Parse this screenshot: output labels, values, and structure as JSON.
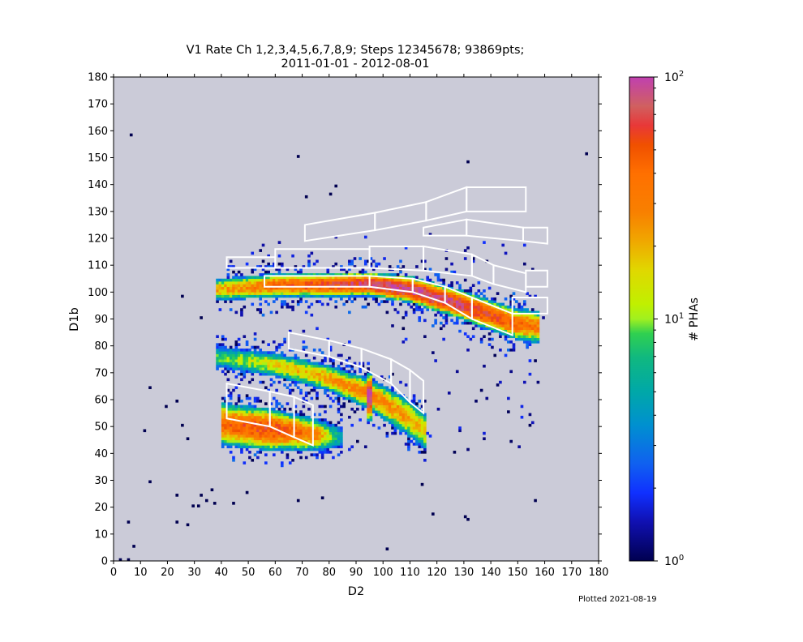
{
  "chart_data": {
    "type": "heatmap",
    "title_line1": "V1 Rate Ch 1,2,3,4,5,6,7,8,9; Steps 12345678; 93869pts;",
    "title_line2": "2011-01-01 - 2012-08-01",
    "xlabel": "D2",
    "ylabel": "D1b",
    "xlim": [
      0,
      180
    ],
    "ylim": [
      0,
      180
    ],
    "xticks": [
      0,
      10,
      20,
      30,
      40,
      50,
      60,
      70,
      80,
      90,
      100,
      110,
      120,
      130,
      140,
      150,
      160,
      170,
      180
    ],
    "yticks": [
      0,
      10,
      20,
      30,
      40,
      50,
      60,
      70,
      80,
      90,
      100,
      110,
      120,
      130,
      140,
      150,
      160,
      170,
      180
    ],
    "background_color": "#cbcbd8",
    "colorbar": {
      "label": "# PHAs",
      "scale": "log",
      "range": [
        1,
        100
      ],
      "tick_labels": [
        {
          "base": "10",
          "exp": "0",
          "value": 1
        },
        {
          "base": "10",
          "exp": "1",
          "value": 10
        },
        {
          "base": "10",
          "exp": "2",
          "value": 100
        }
      ],
      "stops": [
        [
          0,
          "#000050"
        ],
        [
          0.08,
          "#1010b0"
        ],
        [
          0.14,
          "#1030ff"
        ],
        [
          0.2,
          "#1060f0"
        ],
        [
          0.28,
          "#0090d0"
        ],
        [
          0.35,
          "#00a8a8"
        ],
        [
          0.42,
          "#10b880"
        ],
        [
          0.47,
          "#30d050"
        ],
        [
          0.5,
          "#a0f020"
        ],
        [
          0.53,
          "#c0f000"
        ],
        [
          0.6,
          "#e0d800"
        ],
        [
          0.66,
          "#f0a800"
        ],
        [
          0.72,
          "#f88000"
        ],
        [
          0.8,
          "#ff7000"
        ],
        [
          0.86,
          "#f05000"
        ],
        [
          0.9,
          "#e83838"
        ],
        [
          0.94,
          "#d06060"
        ],
        [
          1,
          "#c040b0"
        ]
      ]
    },
    "bands": [
      {
        "name": "upper",
        "x": [
          38,
          60,
          95,
          110,
          130,
          150,
          158
        ],
        "center": [
          101,
          102.5,
          103,
          101,
          95,
          88,
          87
        ],
        "halfwidth": [
          4,
          4.5,
          4.5,
          5,
          5.5,
          6,
          6
        ],
        "peak_log": [
          1.3,
          1.6,
          1.9,
          2.0,
          1.9,
          1.6,
          1.5
        ]
      },
      {
        "name": "middle",
        "x": [
          38,
          60,
          80,
          95,
          110,
          116
        ],
        "center": [
          76,
          73,
          68,
          62,
          53,
          48
        ],
        "halfwidth": [
          4,
          4.5,
          5,
          6,
          7,
          7
        ],
        "peak_log": [
          0.9,
          1.2,
          1.35,
          1.5,
          1.35,
          1.2
        ]
      },
      {
        "name": "lower",
        "x": [
          40,
          58,
          75,
          85
        ],
        "center": [
          51,
          49,
          47,
          46
        ],
        "halfwidth": [
          8,
          8,
          6,
          4
        ],
        "peak_log": [
          1.6,
          1.75,
          1.5,
          0.6
        ]
      },
      {
        "name": "stripe",
        "x": [
          94,
          96
        ],
        "center": [
          61,
          61
        ],
        "halfwidth": [
          9,
          9
        ],
        "peak_log": [
          2.0,
          2.0
        ]
      }
    ],
    "isolated_points": [
      [
        6,
        158
      ],
      [
        175,
        151
      ],
      [
        68,
        150
      ],
      [
        131,
        148
      ],
      [
        71,
        135
      ],
      [
        80,
        136
      ],
      [
        82,
        139
      ],
      [
        32,
        90
      ],
      [
        25,
        98
      ],
      [
        13,
        64
      ],
      [
        11,
        48
      ],
      [
        19,
        57
      ],
      [
        23,
        59
      ],
      [
        25,
        50
      ],
      [
        27,
        45
      ],
      [
        13,
        29
      ],
      [
        23,
        24
      ],
      [
        32,
        24
      ],
      [
        34,
        22
      ],
      [
        36,
        26
      ],
      [
        37,
        21
      ],
      [
        29,
        20
      ],
      [
        31,
        20
      ],
      [
        23,
        14
      ],
      [
        27,
        13
      ],
      [
        5,
        14
      ],
      [
        7,
        5
      ],
      [
        2,
        0
      ],
      [
        5,
        0
      ],
      [
        101,
        4
      ],
      [
        118,
        17
      ],
      [
        130,
        16
      ],
      [
        131,
        15
      ],
      [
        114,
        28
      ],
      [
        68,
        22
      ],
      [
        77,
        23
      ],
      [
        156,
        22
      ],
      [
        49,
        25
      ],
      [
        44,
        21
      ]
    ],
    "region_boxes": [
      [
        [
          71,
          119
        ],
        [
          97,
          123
        ],
        [
          97,
          129.5
        ],
        [
          71,
          125
        ]
      ],
      [
        [
          97,
          123
        ],
        [
          116,
          126.6
        ],
        [
          116,
          133.5
        ],
        [
          97,
          129.5
        ]
      ],
      [
        [
          116,
          126.6
        ],
        [
          131,
          130
        ],
        [
          131,
          139
        ],
        [
          116,
          133.5
        ]
      ],
      [
        [
          131,
          130
        ],
        [
          153,
          130
        ],
        [
          153,
          139
        ],
        [
          131,
          139
        ]
      ],
      [
        [
          115,
          121
        ],
        [
          131,
          121
        ],
        [
          131,
          127
        ],
        [
          115,
          124
        ]
      ],
      [
        [
          131,
          121
        ],
        [
          152,
          119
        ],
        [
          152,
          124
        ],
        [
          131,
          127
        ]
      ],
      [
        [
          152,
          119
        ],
        [
          161,
          118
        ],
        [
          161,
          124
        ],
        [
          152,
          124
        ]
      ],
      [
        [
          42,
          109
        ],
        [
          60,
          109
        ],
        [
          60,
          113
        ],
        [
          42,
          113
        ]
      ],
      [
        [
          60,
          109
        ],
        [
          95,
          109
        ],
        [
          95,
          116
        ],
        [
          60,
          116
        ]
      ],
      [
        [
          95,
          109
        ],
        [
          115,
          108
        ],
        [
          115,
          117
        ],
        [
          95,
          117
        ]
      ],
      [
        [
          115,
          108
        ],
        [
          133,
          106
        ],
        [
          133,
          114
        ],
        [
          115,
          117
        ]
      ],
      [
        [
          133,
          106
        ],
        [
          141,
          103
        ],
        [
          141,
          110
        ],
        [
          133,
          114
        ]
      ],
      [
        [
          141,
          103
        ],
        [
          153,
          100
        ],
        [
          153,
          107
        ],
        [
          141,
          110
        ]
      ],
      [
        [
          153,
          102
        ],
        [
          161,
          102
        ],
        [
          161,
          108
        ],
        [
          153,
          108
        ]
      ],
      [
        [
          56,
          102
        ],
        [
          95,
          102
        ],
        [
          95,
          106
        ],
        [
          56,
          106
        ]
      ],
      [
        [
          95,
          102
        ],
        [
          111,
          100
        ],
        [
          111,
          105
        ],
        [
          95,
          106
        ]
      ],
      [
        [
          111,
          100
        ],
        [
          123,
          96
        ],
        [
          123,
          102
        ],
        [
          111,
          105
        ]
      ],
      [
        [
          123,
          96
        ],
        [
          133,
          90
        ],
        [
          133,
          98
        ],
        [
          123,
          102
        ]
      ],
      [
        [
          133,
          90
        ],
        [
          148,
          84
        ],
        [
          148,
          92
        ],
        [
          133,
          98
        ]
      ],
      [
        [
          148,
          92
        ],
        [
          161,
          92
        ],
        [
          161,
          98
        ],
        [
          148,
          98
        ]
      ],
      [
        [
          65,
          79
        ],
        [
          80,
          76
        ],
        [
          80,
          82
        ],
        [
          65,
          85
        ]
      ],
      [
        [
          80,
          76
        ],
        [
          92,
          72
        ],
        [
          92,
          79
        ],
        [
          80,
          82
        ]
      ],
      [
        [
          92,
          72
        ],
        [
          103,
          66
        ],
        [
          103,
          75
        ],
        [
          92,
          79
        ]
      ],
      [
        [
          103,
          66
        ],
        [
          110,
          59
        ],
        [
          110,
          71
        ],
        [
          103,
          75
        ]
      ],
      [
        [
          110,
          59
        ],
        [
          115,
          55
        ],
        [
          115,
          67
        ],
        [
          110,
          71
        ]
      ],
      [
        [
          42,
          53
        ],
        [
          58,
          50
        ],
        [
          58,
          63
        ],
        [
          42,
          66
        ]
      ],
      [
        [
          58,
          50
        ],
        [
          67,
          46
        ],
        [
          67,
          61
        ],
        [
          58,
          63
        ]
      ],
      [
        [
          67,
          46
        ],
        [
          74,
          43
        ],
        [
          74,
          58
        ],
        [
          67,
          61
        ]
      ]
    ],
    "footer_note": "Plotted 2021-08-19"
  }
}
